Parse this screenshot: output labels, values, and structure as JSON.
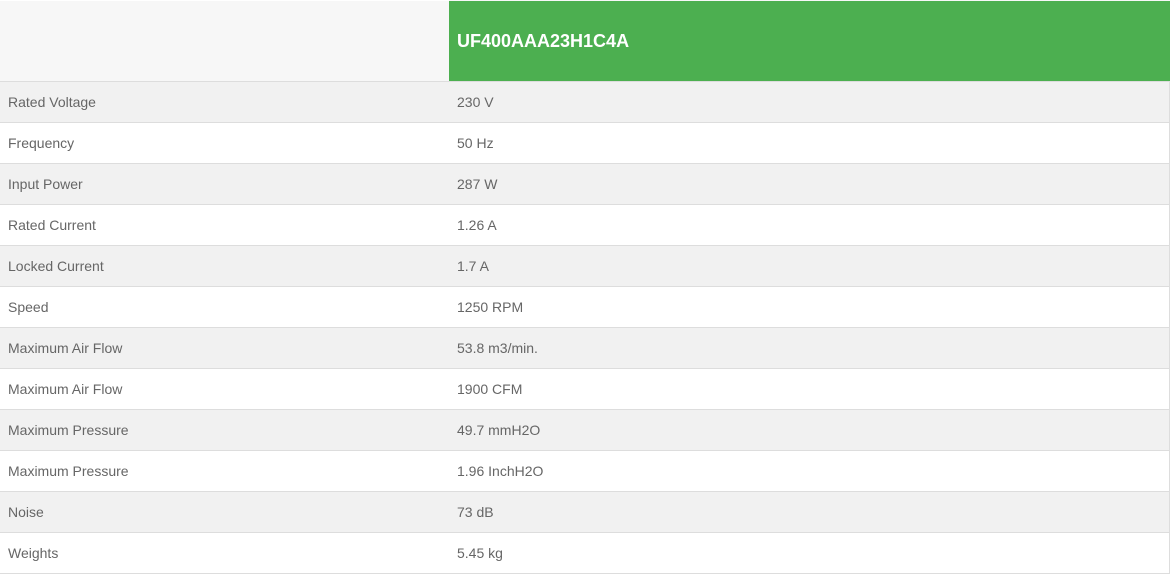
{
  "header": {
    "model": "UF400AAA23H1C4A"
  },
  "specs": [
    {
      "label": "Rated Voltage",
      "value": "230 V"
    },
    {
      "label": "Frequency",
      "value": "50 Hz"
    },
    {
      "label": "Input Power",
      "value": "287 W"
    },
    {
      "label": "Rated Current",
      "value": "1.26 A"
    },
    {
      "label": "Locked Current",
      "value": "1.7 A"
    },
    {
      "label": "Speed",
      "value": "1250 RPM"
    },
    {
      "label": "Maximum Air Flow",
      "value": "53.8 m3/min."
    },
    {
      "label": "Maximum Air Flow",
      "value": "1900 CFM"
    },
    {
      "label": "Maximum Pressure",
      "value": "49.7 mmH2O"
    },
    {
      "label": "Maximum Pressure",
      "value": "1.96 InchH2O"
    },
    {
      "label": "Noise",
      "value": "73 dB"
    },
    {
      "label": "Weights",
      "value": "5.45 kg"
    }
  ],
  "colors": {
    "accent": "#4caf50"
  }
}
